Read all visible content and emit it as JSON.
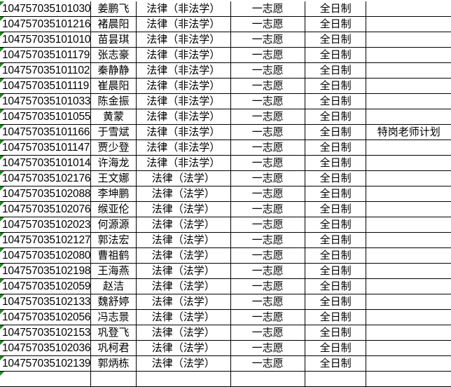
{
  "accent_colors": {
    "note_marker": "#1a8a1a",
    "grid": "#000000"
  },
  "rows": [
    {
      "id": "104757035101030",
      "name": "姜鹏飞",
      "major": "法律（非法学）",
      "choice": "一志愿",
      "mode": "全日制",
      "note": ""
    },
    {
      "id": "104757035101216",
      "name": "褚晨阳",
      "major": "法律（非法学）",
      "choice": "一志愿",
      "mode": "全日制",
      "note": ""
    },
    {
      "id": "104757035101010",
      "name": "苗昙琪",
      "major": "法律（非法学）",
      "choice": "一志愿",
      "mode": "全日制",
      "note": ""
    },
    {
      "id": "104757035101179",
      "name": "张志豪",
      "major": "法律（非法学）",
      "choice": "一志愿",
      "mode": "全日制",
      "note": ""
    },
    {
      "id": "104757035101102",
      "name": "秦静静",
      "major": "法律（非法学）",
      "choice": "一志愿",
      "mode": "全日制",
      "note": ""
    },
    {
      "id": "104757035101119",
      "name": "崔晨阳",
      "major": "法律（非法学）",
      "choice": "一志愿",
      "mode": "全日制",
      "note": ""
    },
    {
      "id": "104757035101033",
      "name": "陈金振",
      "major": "法律（非法学）",
      "choice": "一志愿",
      "mode": "全日制",
      "note": ""
    },
    {
      "id": "104757035101055",
      "name": "黄蒙",
      "major": "法律（非法学）",
      "choice": "一志愿",
      "mode": "全日制",
      "note": ""
    },
    {
      "id": "104757035101166",
      "name": "于雪斌",
      "major": "法律（非法学）",
      "choice": "一志愿",
      "mode": "全日制",
      "note": "特岗老师计划"
    },
    {
      "id": "104757035101147",
      "name": "贾少登",
      "major": "法律（非法学）",
      "choice": "一志愿",
      "mode": "全日制",
      "note": ""
    },
    {
      "id": "104757035101014",
      "name": "许海龙",
      "major": "法律（非法学）",
      "choice": "一志愿",
      "mode": "全日制",
      "note": ""
    },
    {
      "id": "104757035102176",
      "name": "王文娜",
      "major": "法律（法学）",
      "choice": "一志愿",
      "mode": "全日制",
      "note": ""
    },
    {
      "id": "104757035102088",
      "name": "李坤鹏",
      "major": "法律（法学）",
      "choice": "一志愿",
      "mode": "全日制",
      "note": ""
    },
    {
      "id": "104757035102076",
      "name": "缑亚伦",
      "major": "法律（法学）",
      "choice": "一志愿",
      "mode": "全日制",
      "note": ""
    },
    {
      "id": "104757035102023",
      "name": "何源源",
      "major": "法律（法学）",
      "choice": "一志愿",
      "mode": "全日制",
      "note": ""
    },
    {
      "id": "104757035102127",
      "name": "郭法宏",
      "major": "法律（法学）",
      "choice": "一志愿",
      "mode": "全日制",
      "note": ""
    },
    {
      "id": "104757035102080",
      "name": "曹祖鹤",
      "major": "法律（法学）",
      "choice": "一志愿",
      "mode": "全日制",
      "note": ""
    },
    {
      "id": "104757035102198",
      "name": "王海燕",
      "major": "法律（法学）",
      "choice": "一志愿",
      "mode": "全日制",
      "note": ""
    },
    {
      "id": "104757035102059",
      "name": "赵洁",
      "major": "法律（法学）",
      "choice": "一志愿",
      "mode": "全日制",
      "note": ""
    },
    {
      "id": "104757035102133",
      "name": "魏舒婷",
      "major": "法律（法学）",
      "choice": "一志愿",
      "mode": "全日制",
      "note": ""
    },
    {
      "id": "104757035102056",
      "name": "冯志景",
      "major": "法律（法学）",
      "choice": "一志愿",
      "mode": "全日制",
      "note": ""
    },
    {
      "id": "104757035102153",
      "name": "巩登飞",
      "major": "法律（法学）",
      "choice": "一志愿",
      "mode": "全日制",
      "note": ""
    },
    {
      "id": "104757035102036",
      "name": "巩柯君",
      "major": "法律（法学）",
      "choice": "一志愿",
      "mode": "全日制",
      "note": ""
    },
    {
      "id": "104757035102139",
      "name": "郭炳栋",
      "major": "法律（法学）",
      "choice": "一志愿",
      "mode": "全日制",
      "note": ""
    }
  ]
}
